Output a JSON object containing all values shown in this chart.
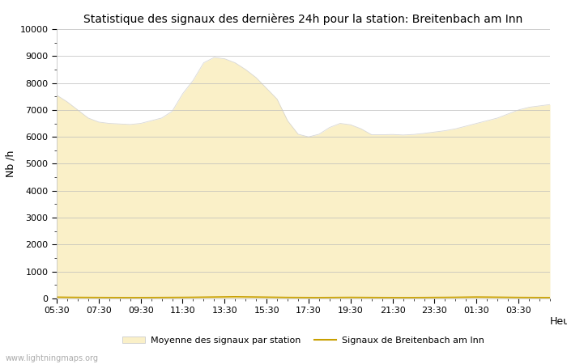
{
  "title": "Statistique des signaux des dernières 24h pour la station: Breitenbach am Inn",
  "xlabel": "Heure",
  "ylabel": "Nb /h",
  "xlim_labels": [
    "05:30",
    "07:30",
    "09:30",
    "11:30",
    "13:30",
    "15:30",
    "17:30",
    "19:30",
    "21:30",
    "23:30",
    "01:30",
    "03:30"
  ],
  "ylim": [
    0,
    10000
  ],
  "yticks": [
    0,
    1000,
    2000,
    3000,
    4000,
    5000,
    6000,
    7000,
    8000,
    9000,
    10000
  ],
  "fill_color": "#FAF0C8",
  "fill_edge_color": "#C8C8C8",
  "line_color": "#C8A000",
  "background_color": "#ffffff",
  "grid_color": "#bbbbbb",
  "watermark": "www.lightningmaps.org",
  "legend_fill_label": "Moyenne des signaux par station",
  "legend_line_label": "Signaux de Breitenbach am Inn",
  "x_values": [
    0,
    1,
    2,
    3,
    4,
    5,
    6,
    7,
    8,
    9,
    10,
    11,
    12,
    13,
    14,
    15,
    16,
    17,
    18,
    19,
    20,
    21,
    22,
    23,
    24,
    25,
    26,
    27,
    28,
    29,
    30,
    31,
    32,
    33,
    34,
    35,
    36,
    37,
    38,
    39,
    40,
    41,
    42,
    43,
    44,
    45,
    46,
    47
  ],
  "avg_values": [
    7550,
    7300,
    7000,
    6700,
    6550,
    6500,
    6480,
    6460,
    6500,
    6600,
    6700,
    6950,
    7600,
    8100,
    8750,
    8950,
    8900,
    8750,
    8500,
    8200,
    7800,
    7400,
    6600,
    6100,
    6000,
    6100,
    6350,
    6500,
    6450,
    6300,
    6080,
    6080,
    6090,
    6070,
    6090,
    6130,
    6180,
    6230,
    6300,
    6400,
    6500,
    6600,
    6700,
    6850,
    7000,
    7100,
    7150,
    7200
  ],
  "station_values": [
    50,
    45,
    42,
    40,
    38,
    36,
    35,
    34,
    35,
    36,
    38,
    40,
    42,
    45,
    50,
    55,
    60,
    65,
    60,
    55,
    50,
    45,
    40,
    38,
    36,
    35,
    37,
    40,
    42,
    40,
    38,
    36,
    35,
    34,
    35,
    37,
    40,
    42,
    45,
    50,
    55,
    52,
    48,
    44,
    40,
    38,
    36,
    35
  ]
}
